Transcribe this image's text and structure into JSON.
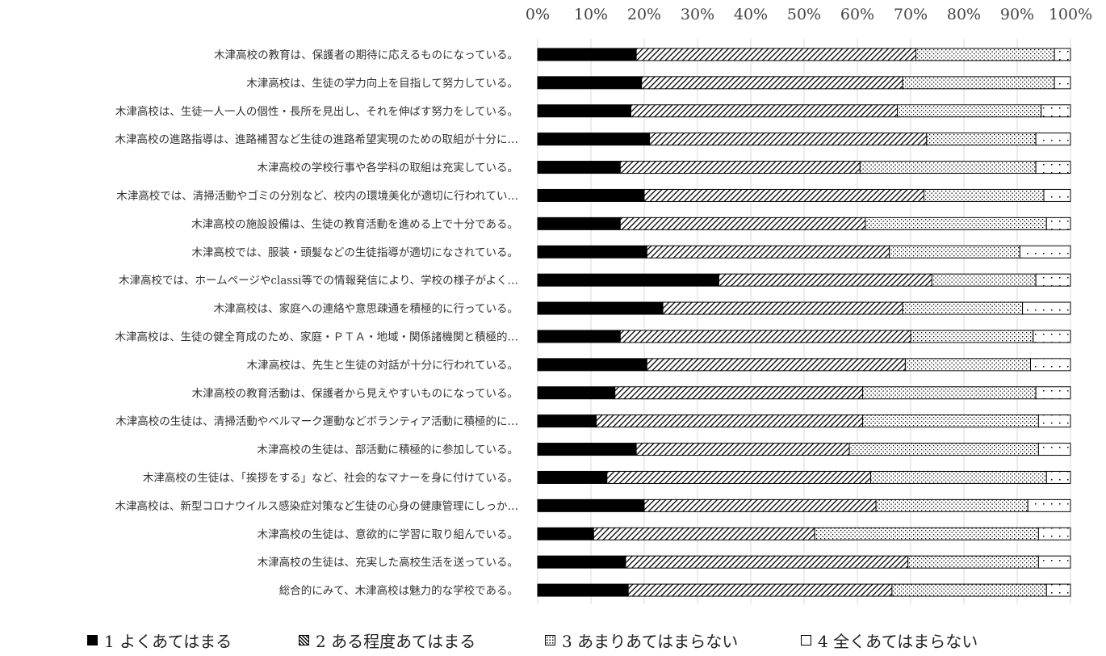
{
  "chart_data": {
    "type": "bar",
    "orientation": "horizontal",
    "stacked": "percent",
    "title": "",
    "xlabel": "",
    "ylabel": "",
    "xlim": [
      0,
      100
    ],
    "x_ticks": [
      "0%",
      "10%",
      "20%",
      "30%",
      "40%",
      "50%",
      "60%",
      "70%",
      "80%",
      "90%",
      "100%"
    ],
    "x_axis_position": "top",
    "grid": true,
    "legend_position": "bottom",
    "categories": [
      "木津高校の教育は、保護者の期待に応えるものになっている。",
      "木津高校は、生徒の学力向上を目指して努力している。",
      "木津高校は、生徒一人一人の個性・長所を見出し、それを伸ばす努力をしている。",
      "木津高校の進路指導は、進路補習など生徒の進路希望実現のための取組が十分に…",
      "木津高校の学校行事や各学科の取組は充実している。",
      "木津高校では、清掃活動やゴミの分別など、校内の環境美化が適切に行われてい…",
      "木津高校の施設設備は、生徒の教育活動を進める上で十分である。",
      "木津高校では、服装・頭髪などの生徒指導が適切になされている。",
      "木津高校では、ホームページやclassi等での情報発信により、学校の様子がよく…",
      "木津高校は、家庭への連絡や意思疎通を積極的に行っている。",
      "木津高校は、生徒の健全育成のため、家庭・ＰＴＡ・地域・関係諸機関と積極的…",
      "木津高校は、先生と生徒の対話が十分に行われている。",
      "木津高校の教育活動は、保護者から見えやすいものになっている。",
      "木津高校の生徒は、清掃活動やベルマーク運動などボランティア活動に積極的に…",
      "木津高校の生徒は、部活動に積極的に参加している。",
      "木津高校の生徒は、「挨拶をする」など、社会的なマナーを身に付けている。",
      "木津高校は、新型コロナウイルス感染症対策など生徒の心身の健康管理にしっか…",
      "木津高校の生徒は、意欲的に学習に取り組んでいる。",
      "木津高校の生徒は、充実した高校生活を送っている。",
      "総合的にみて、木津高校は魅力的な学校である。"
    ],
    "series": [
      {
        "name": "1 よくあてはまる",
        "fill": "#000000",
        "values": [
          18.5,
          19.5,
          17.5,
          21,
          15.5,
          20,
          15.5,
          20.5,
          34,
          23.5,
          15.5,
          20.5,
          14.5,
          11,
          18.5,
          13,
          20,
          10.5,
          16.5,
          17
        ]
      },
      {
        "name": "2 ある程度あてはまる",
        "fill": "hatch",
        "values": [
          52.5,
          49,
          50,
          52,
          45,
          52.5,
          46,
          45.5,
          40,
          45,
          54.5,
          48.5,
          46.5,
          50,
          40,
          49.5,
          43.5,
          41.5,
          53,
          49.5
        ]
      },
      {
        "name": "3 あまりあてはまらない",
        "fill": "dots",
        "values": [
          26,
          28.5,
          27,
          20.5,
          33,
          22.5,
          34,
          24.5,
          19.5,
          22.5,
          23,
          23.5,
          32.5,
          33,
          35.5,
          33,
          28.5,
          42,
          24.5,
          29
        ]
      },
      {
        "name": "4 全くあてはまらない",
        "fill": "sparse-dots",
        "values": [
          3,
          3,
          5.5,
          6.5,
          6.5,
          5,
          4.5,
          9.5,
          6.5,
          9,
          7,
          7.5,
          6.5,
          6,
          6,
          4.5,
          8,
          6,
          6,
          4.5
        ]
      }
    ]
  },
  "legend_items": [
    {
      "marker": "■",
      "label": "1 よくあてはまる"
    },
    {
      "marker": "▨",
      "label": "2 ある程度あてはまる"
    },
    {
      "marker": "⊡",
      "label": "3 あまりあてはまらない"
    },
    {
      "marker": "□",
      "label": "4 全くあてはまらない"
    }
  ]
}
